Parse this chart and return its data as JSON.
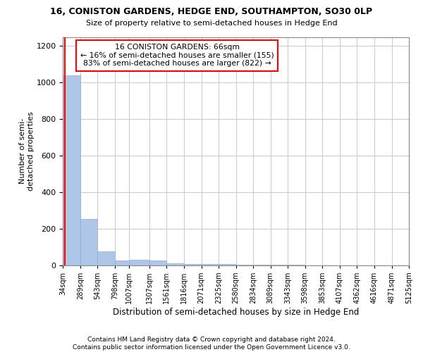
{
  "title": "16, CONISTON GARDENS, HEDGE END, SOUTHAMPTON, SO30 0LP",
  "subtitle": "Size of property relative to semi-detached houses in Hedge End",
  "xlabel": "Distribution of semi-detached houses by size in Hedge End",
  "ylabel": "Number of semi-\ndetached properties",
  "annotation_title": "16 CONISTON GARDENS: 66sqm",
  "annotation_line2": "← 16% of semi-detached houses are smaller (155)",
  "annotation_line3": "83% of semi-detached houses are larger (822) →",
  "property_size": 66,
  "footer1": "Contains HM Land Registry data © Crown copyright and database right 2024.",
  "footer2": "Contains public sector information licensed under the Open Government Licence v3.0.",
  "bins": [
    34,
    289,
    543,
    798,
    1007,
    1307,
    1561,
    1816,
    2071,
    2325,
    2580,
    2834,
    3089,
    3343,
    3598,
    3853,
    4107,
    4362,
    4616,
    4871,
    5125
  ],
  "counts": [
    1040,
    255,
    75,
    25,
    30,
    25,
    12,
    8,
    6,
    5,
    4,
    3,
    2,
    2,
    1,
    1,
    1,
    1,
    1,
    1
  ],
  "highlight_bin_index": 0,
  "bar_color_normal": "#aec6e8",
  "annotation_box_color": "white",
  "annotation_box_edge": "red",
  "property_line_color": "red",
  "grid_color": "#cccccc",
  "background_color": "white",
  "ylim": [
    0,
    1250
  ],
  "yticks": [
    0,
    200,
    400,
    600,
    800,
    1000,
    1200
  ]
}
